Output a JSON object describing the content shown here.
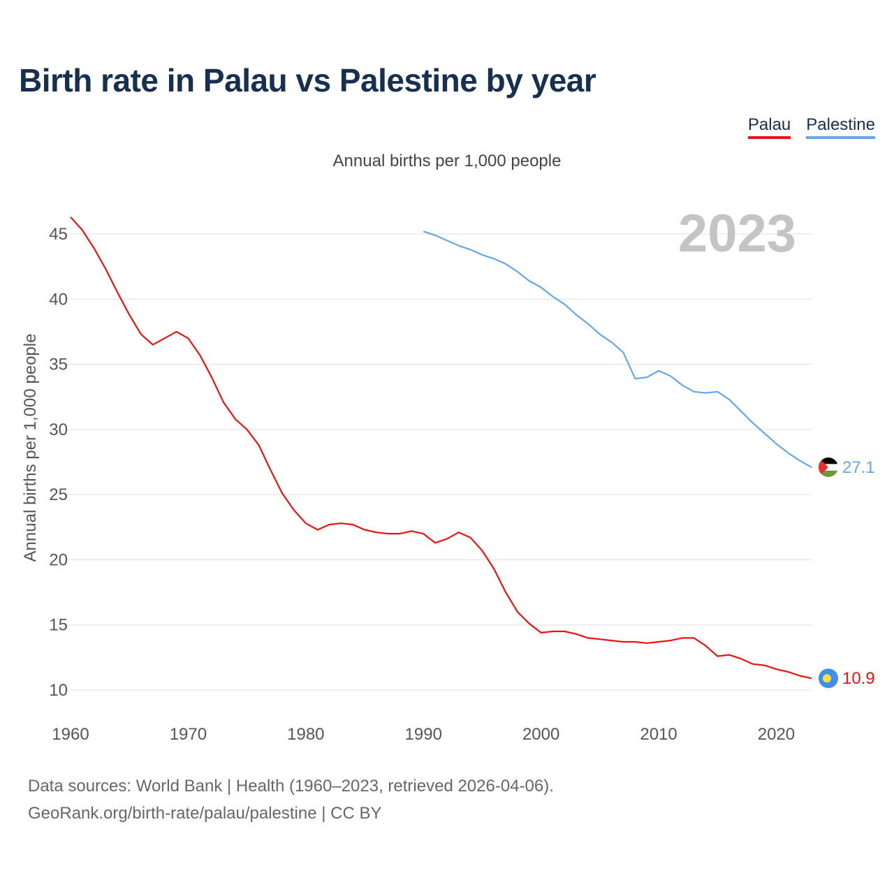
{
  "title": "Birth rate in Palau vs Palestine by year",
  "subtitle": "Annual births per 1,000 people",
  "footer": {
    "line1": "Data sources: World Bank | Health (1960–2023, retrieved 2026-04-06).",
    "line2": "GeoRank.org/birth-rate/palau/palestine | CC BY"
  },
  "colors": {
    "palau": "#ee1111",
    "palestine": "#63a8ea",
    "grid": "#e6e6e6",
    "tick": "#555555",
    "year": "#c4c4c4"
  },
  "chart_data": {
    "type": "line",
    "title": "Birth rate in Palau vs Palestine by year",
    "ylabel": "Annual births per 1,000 people",
    "xlabel": "",
    "xlim": [
      1960,
      2023
    ],
    "ylim": [
      10,
      47
    ],
    "x_ticks": [
      1960,
      1970,
      1980,
      1990,
      2000,
      2010,
      2020
    ],
    "y_ticks": [
      10,
      15,
      20,
      25,
      30,
      35,
      40,
      45
    ],
    "grid": true,
    "legend": "top-right",
    "year_label": "2023",
    "series": [
      {
        "name": "Palau",
        "color": "#ee1111",
        "end_label": "10.9",
        "x": [
          1960,
          1961,
          1962,
          1963,
          1964,
          1965,
          1966,
          1967,
          1968,
          1969,
          1970,
          1971,
          1972,
          1973,
          1974,
          1975,
          1976,
          1977,
          1978,
          1979,
          1980,
          1981,
          1982,
          1983,
          1984,
          1985,
          1986,
          1987,
          1988,
          1989,
          1990,
          1991,
          1992,
          1993,
          1994,
          1995,
          1996,
          1997,
          1998,
          1999,
          2000,
          2001,
          2002,
          2003,
          2004,
          2005,
          2006,
          2007,
          2008,
          2009,
          2010,
          2011,
          2012,
          2013,
          2014,
          2015,
          2016,
          2017,
          2018,
          2019,
          2020,
          2021,
          2022,
          2023
        ],
        "values": [
          46.3,
          45.3,
          43.9,
          42.3,
          40.5,
          38.8,
          37.3,
          36.5,
          37.0,
          37.5,
          37.0,
          35.7,
          34.0,
          32.1,
          30.8,
          30.0,
          28.8,
          26.9,
          25.1,
          23.8,
          22.8,
          22.3,
          22.7,
          22.8,
          22.7,
          22.3,
          22.1,
          22.0,
          22.0,
          22.2,
          22.0,
          21.3,
          21.6,
          22.1,
          21.7,
          20.7,
          19.3,
          17.5,
          16.0,
          15.1,
          14.4,
          14.5,
          14.5,
          14.3,
          14.0,
          13.9,
          13.8,
          13.7,
          13.7,
          13.6,
          13.7,
          13.8,
          14.0,
          14.0,
          13.4,
          12.6,
          12.7,
          12.4,
          12.0,
          11.9,
          11.6,
          11.4,
          11.1,
          10.9
        ]
      },
      {
        "name": "Palestine",
        "color": "#63a8ea",
        "end_label": "27.1",
        "x": [
          1990,
          1991,
          1992,
          1993,
          1994,
          1995,
          1996,
          1997,
          1998,
          1999,
          2000,
          2001,
          2002,
          2003,
          2004,
          2005,
          2006,
          2007,
          2008,
          2009,
          2010,
          2011,
          2012,
          2013,
          2014,
          2015,
          2016,
          2017,
          2018,
          2019,
          2020,
          2021,
          2022,
          2023
        ],
        "values": [
          45.2,
          44.9,
          44.5,
          44.1,
          43.8,
          43.4,
          43.1,
          42.7,
          42.1,
          41.4,
          40.9,
          40.2,
          39.6,
          38.8,
          38.1,
          37.3,
          36.7,
          35.9,
          33.9,
          34.0,
          34.5,
          34.1,
          33.4,
          32.9,
          32.8,
          32.9,
          32.3,
          31.4,
          30.5,
          29.7,
          28.9,
          28.2,
          27.6,
          27.1
        ]
      }
    ]
  }
}
